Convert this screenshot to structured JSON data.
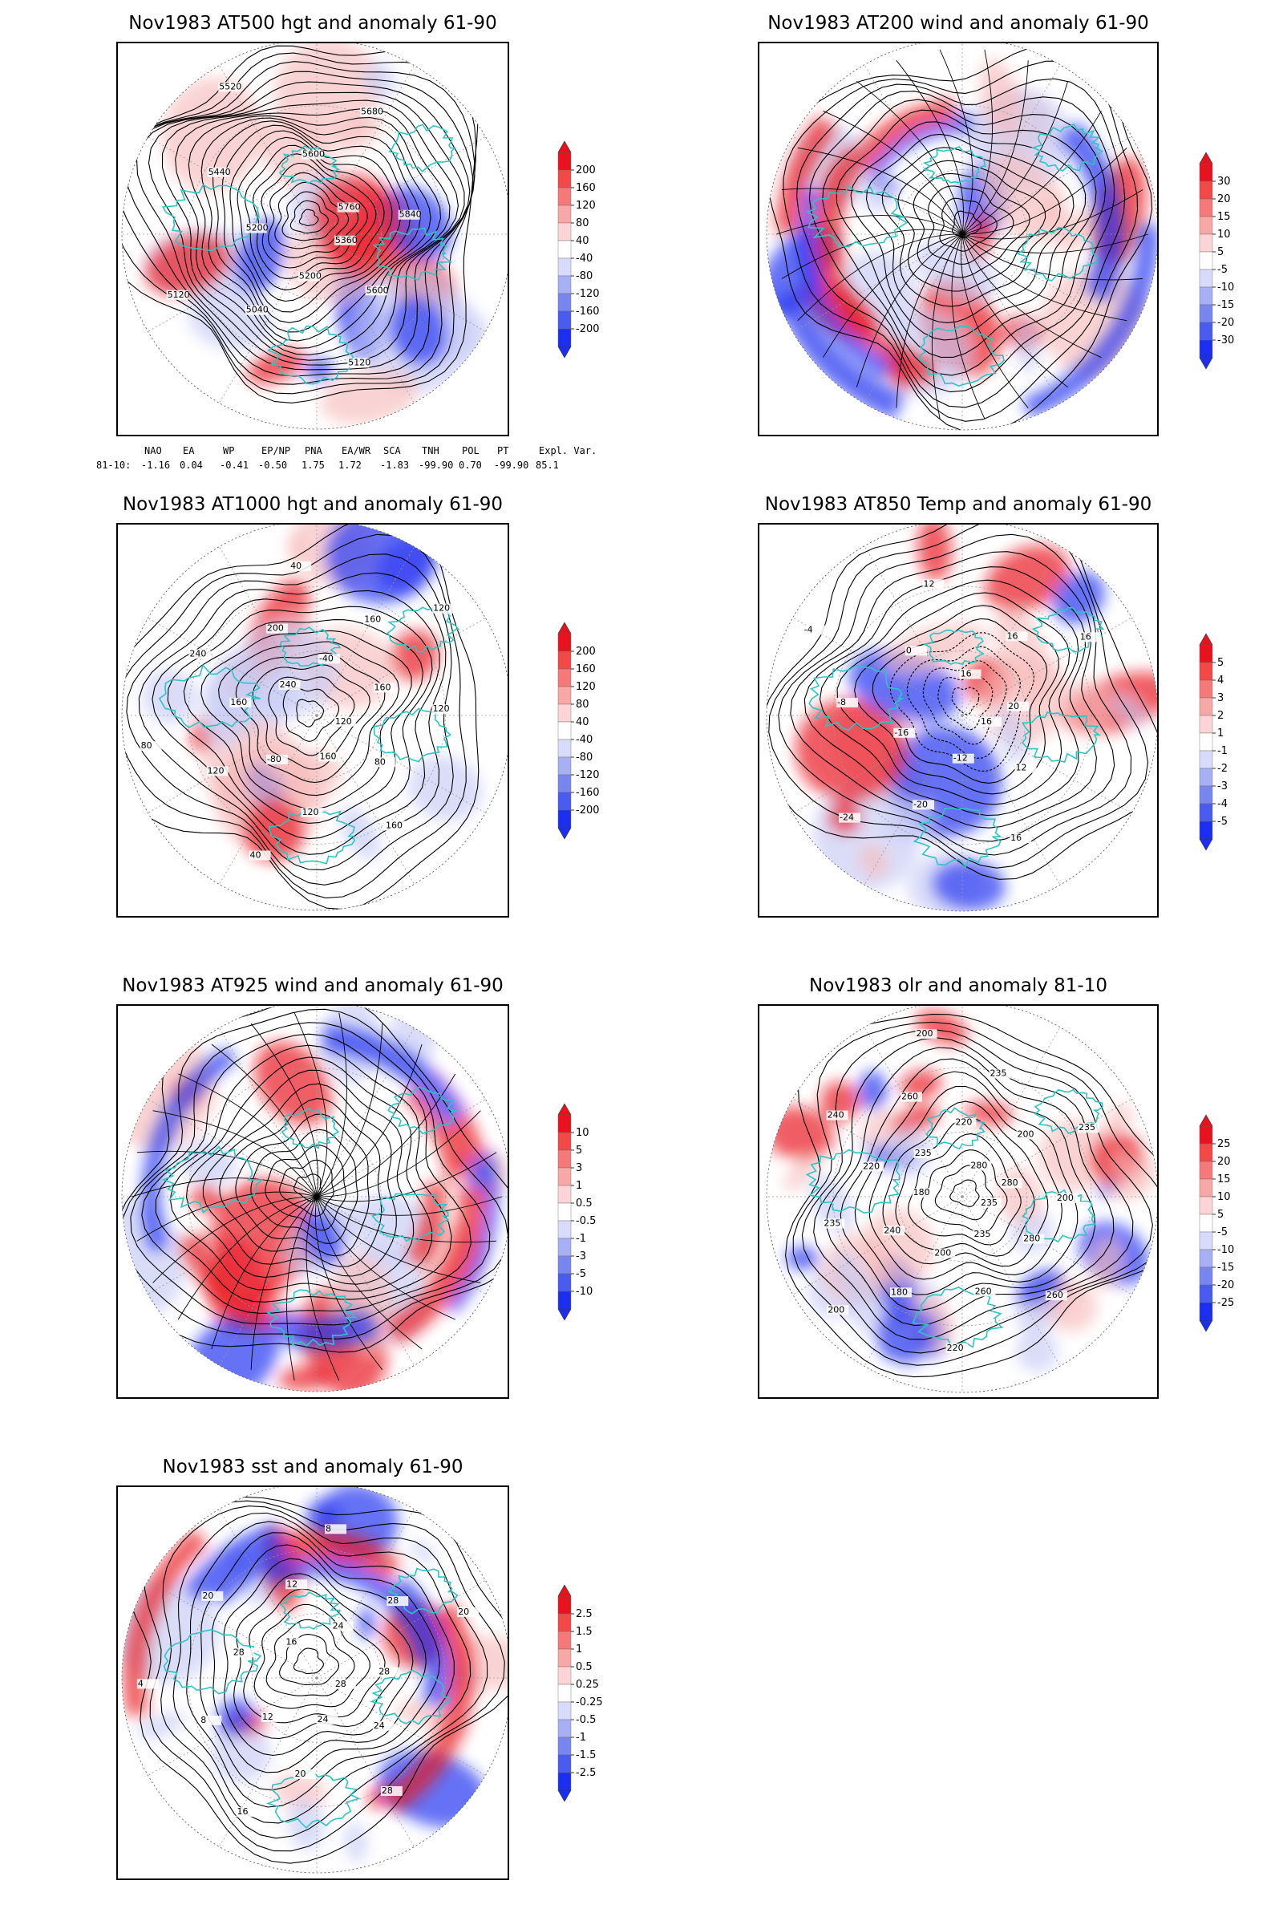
{
  "panels": [
    {
      "id": "p1",
      "title": "Nov1983 AT500 hgt and anomaly 61-90",
      "field": "height",
      "colorbar": [
        "200",
        "160",
        "120",
        "80",
        "40",
        "-40",
        "-80",
        "-120",
        "-160",
        "-200"
      ],
      "contour_labels": [
        "5360",
        "5600",
        "5120",
        "5200",
        "5040",
        "5120",
        "5200",
        "5440",
        "5520",
        "5600",
        "5680",
        "5760",
        "5840"
      ]
    },
    {
      "id": "p2",
      "title": "Nov1983 AT200 wind and anomaly 61-90",
      "field": "wind",
      "colorbar": [
        "30",
        "20",
        "15",
        "10",
        "5",
        "-5",
        "-10",
        "-15",
        "-20",
        "-30"
      ],
      "contour_labels": []
    },
    {
      "id": "p3",
      "title": "Nov1983 AT1000 hgt and anomaly 61-90",
      "field": "height",
      "colorbar": [
        "200",
        "160",
        "120",
        "80",
        "40",
        "-40",
        "-80",
        "-120",
        "-160",
        "-200"
      ],
      "contour_labels": [
        "120",
        "80",
        "160",
        "160",
        "120",
        "40",
        "-80",
        "120",
        "80",
        "160",
        "240",
        "240",
        "200",
        "40",
        "-40",
        "160",
        "120",
        "160",
        "120"
      ]
    },
    {
      "id": "p4",
      "title": "Nov1983 AT850 Temp and anomaly 61-90",
      "field": "temp",
      "colorbar": [
        "5",
        "4",
        "3",
        "2",
        "1",
        "-1",
        "-2",
        "-3",
        "-4",
        "-5"
      ],
      "contour_labels": [
        "16",
        "12",
        "16",
        "-12",
        "-20",
        "-24",
        "-16",
        "-8",
        "-4",
        "0",
        "12",
        "16",
        "16",
        "16",
        "20"
      ]
    },
    {
      "id": "p5",
      "title": "Nov1983 AT925 wind and anomaly 61-90",
      "field": "wind",
      "colorbar": [
        "10",
        "5",
        "3",
        "1",
        "0.5",
        "-0.5",
        "-1",
        "-3",
        "-5",
        "-10"
      ],
      "contour_labels": []
    },
    {
      "id": "p6",
      "title": "Nov1983 olr and anomaly 81-10",
      "field": "olr",
      "colorbar": [
        "25",
        "20",
        "15",
        "10",
        "5",
        "-5",
        "-10",
        "-15",
        "-20",
        "-25"
      ],
      "contour_labels": [
        "235",
        "280",
        "260",
        "235",
        "260",
        "220",
        "200",
        "180",
        "200",
        "240",
        "235",
        "180",
        "220",
        "240",
        "235",
        "260",
        "200",
        "220",
        "235",
        "280",
        "200",
        "235",
        "280",
        "200"
      ]
    },
    {
      "id": "p7",
      "title": "Nov1983 sst and anomaly 61-90",
      "field": "sst",
      "colorbar": [
        "2.5",
        "1.5",
        "1",
        "0.5",
        "0.25",
        "-0.25",
        "-0.5",
        "-1",
        "-1.5",
        "-2.5"
      ],
      "contour_labels": [
        "28",
        "24",
        "28",
        "24",
        "20",
        "16",
        "12",
        "8",
        "4",
        "28",
        "20",
        "16",
        "12",
        "8",
        "24",
        "28",
        "20",
        "28"
      ]
    }
  ],
  "indices": {
    "names": [
      "NAO",
      "EA",
      "WP",
      "EP/NP",
      "PNA",
      "EA/WR",
      "SCA",
      "TNH",
      "POL",
      "PT",
      "Expl. Var."
    ],
    "period": "81-10:",
    "values": [
      "-1.16",
      "0.04",
      "-0.41",
      "-0.50",
      "1.75",
      "1.72",
      "-1.83",
      "-99.90",
      "0.70",
      "-99.90",
      "85.1"
    ]
  },
  "colors": {
    "land_outline": "#2ec4c4",
    "red_strong": "#e8121e",
    "red_light": "#f6b4b4",
    "blue_strong": "#1c2ff0",
    "blue_light": "#c0c4f4",
    "contour": "#000000",
    "grid": "#9a9a9a"
  }
}
